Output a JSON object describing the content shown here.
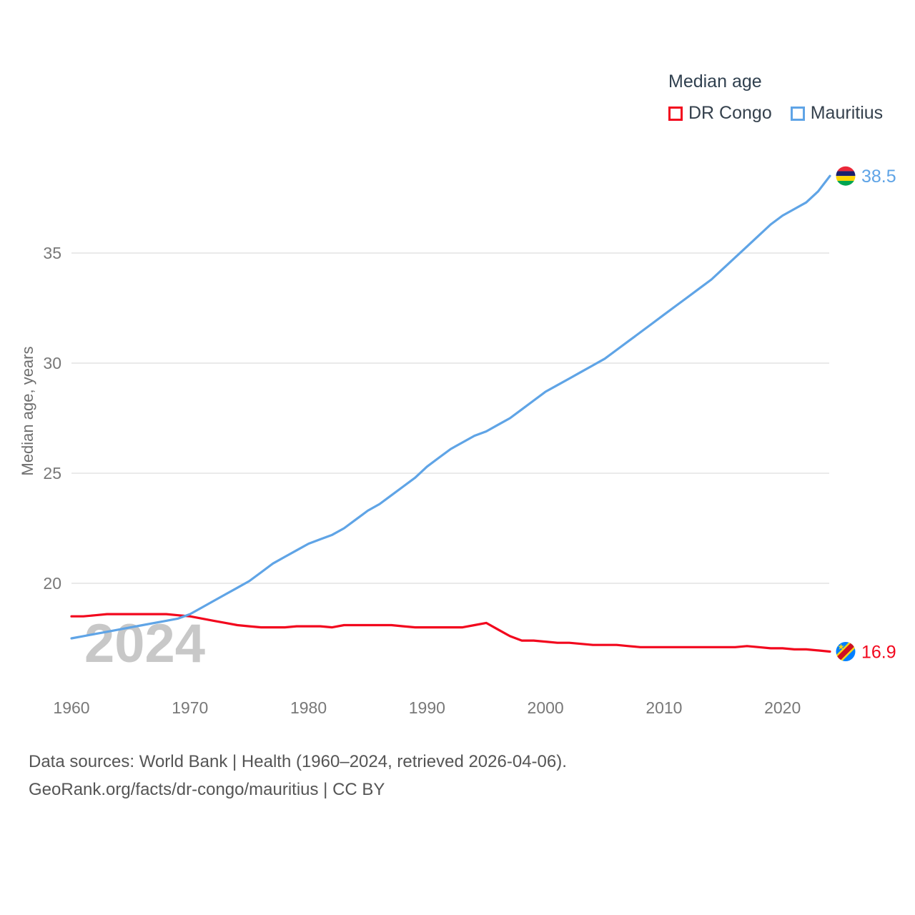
{
  "legend": {
    "title": "Median age",
    "items": [
      {
        "label": "DR Congo",
        "color": "#f2071d"
      },
      {
        "label": "Mauritius",
        "color": "#5fa4e6"
      }
    ]
  },
  "y_axis": {
    "label": "Median age, years"
  },
  "watermark": "2024",
  "end_labels": {
    "mauritius": "38.5",
    "dr_congo": "16.9"
  },
  "footer": {
    "line1": "Data sources: World Bank | Health (1960–2024, retrieved 2026-04-06).",
    "line2": "GeoRank.org/facts/dr-congo/mauritius | CC BY"
  },
  "chart_data": {
    "type": "line",
    "title": "Median age",
    "ylabel": "Median age, years",
    "xlabel": "",
    "grid": "horizontal",
    "legend_position": "top-right",
    "xlim": [
      1960,
      2024
    ],
    "ylim": [
      15.3,
      43.3
    ],
    "y_ticks": [
      20,
      25,
      30,
      35
    ],
    "x_ticks": [
      1960,
      1970,
      1980,
      1990,
      2000,
      2010,
      2020
    ],
    "x": [
      1960,
      1961,
      1962,
      1963,
      1964,
      1965,
      1966,
      1967,
      1968,
      1969,
      1970,
      1971,
      1972,
      1973,
      1974,
      1975,
      1976,
      1977,
      1978,
      1979,
      1980,
      1981,
      1982,
      1983,
      1984,
      1985,
      1986,
      1987,
      1988,
      1989,
      1990,
      1991,
      1992,
      1993,
      1994,
      1995,
      1996,
      1997,
      1998,
      1999,
      2000,
      2001,
      2002,
      2003,
      2004,
      2005,
      2006,
      2007,
      2008,
      2009,
      2010,
      2011,
      2012,
      2013,
      2014,
      2015,
      2016,
      2017,
      2018,
      2019,
      2020,
      2021,
      2022,
      2023,
      2024
    ],
    "series": [
      {
        "name": "DR Congo",
        "color": "#f2071d",
        "end_value": 16.9,
        "values": [
          18.5,
          18.5,
          18.55,
          18.6,
          18.6,
          18.6,
          18.6,
          18.6,
          18.6,
          18.55,
          18.5,
          18.4,
          18.3,
          18.2,
          18.1,
          18.05,
          18.0,
          18.0,
          18.0,
          18.05,
          18.05,
          18.05,
          18.0,
          18.1,
          18.1,
          18.1,
          18.1,
          18.1,
          18.05,
          18.0,
          18.0,
          18.0,
          18.0,
          18.0,
          18.1,
          18.2,
          17.9,
          17.6,
          17.4,
          17.4,
          17.35,
          17.3,
          17.3,
          17.25,
          17.2,
          17.2,
          17.2,
          17.15,
          17.1,
          17.1,
          17.1,
          17.1,
          17.1,
          17.1,
          17.1,
          17.1,
          17.1,
          17.15,
          17.1,
          17.05,
          17.05,
          17.0,
          17.0,
          16.95,
          16.9
        ]
      },
      {
        "name": "Mauritius",
        "color": "#5fa4e6",
        "end_value": 38.5,
        "values": [
          17.5,
          17.6,
          17.7,
          17.8,
          17.9,
          18.0,
          18.1,
          18.2,
          18.3,
          18.4,
          18.6,
          18.9,
          19.2,
          19.5,
          19.8,
          20.1,
          20.5,
          20.9,
          21.2,
          21.5,
          21.8,
          22.0,
          22.2,
          22.5,
          22.9,
          23.3,
          23.6,
          24.0,
          24.4,
          24.8,
          25.3,
          25.7,
          26.1,
          26.4,
          26.7,
          26.9,
          27.2,
          27.5,
          27.9,
          28.3,
          28.7,
          29.0,
          29.3,
          29.6,
          29.9,
          30.2,
          30.6,
          31.0,
          31.4,
          31.8,
          32.2,
          32.6,
          33.0,
          33.4,
          33.8,
          34.3,
          34.8,
          35.3,
          35.8,
          36.3,
          36.7,
          37.0,
          37.3,
          37.8,
          38.5
        ]
      }
    ]
  }
}
